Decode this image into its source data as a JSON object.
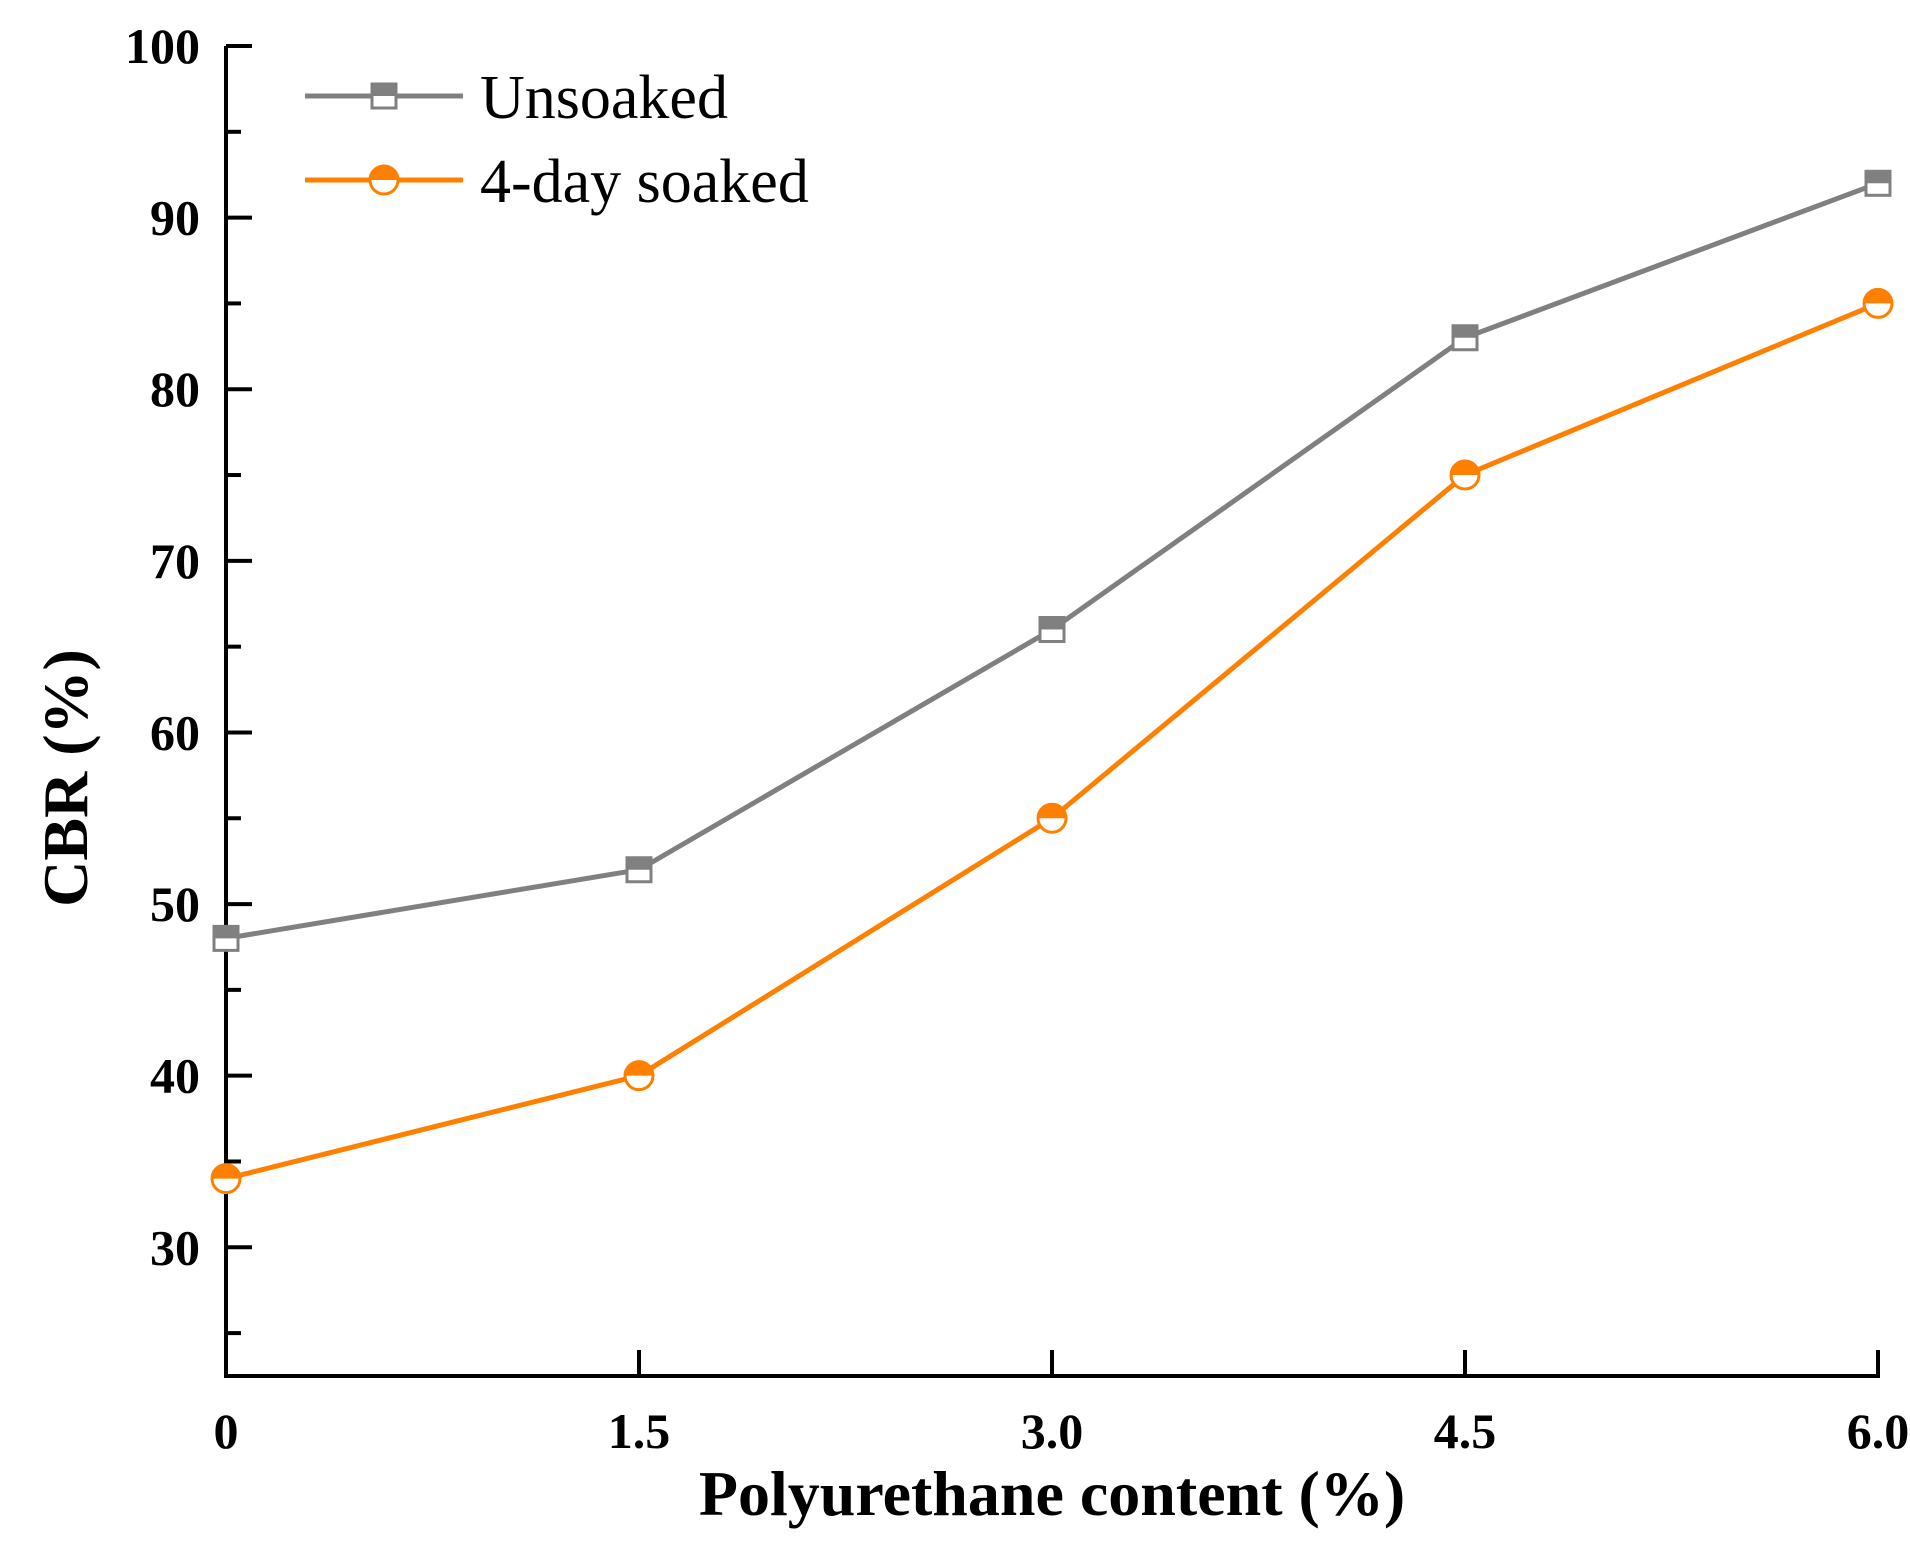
{
  "chart_data": {
    "type": "line",
    "title": "",
    "xlabel": "Polyurethane content (%)",
    "ylabel": "CBR (%)",
    "x": [
      0,
      1.5,
      3.0,
      4.5,
      6.0
    ],
    "x_tick_labels": [
      "0",
      "1.5",
      "3.0",
      "4.5",
      "6.0"
    ],
    "xlim": [
      0,
      6.0
    ],
    "y_ticks": [
      30,
      40,
      50,
      60,
      70,
      80,
      90,
      100
    ],
    "y_tick_labels": [
      "30",
      "40",
      "50",
      "60",
      "70",
      "80",
      "90",
      "100"
    ],
    "ylim": [
      22.5,
      100
    ],
    "grid": false,
    "legend_position": "top-left",
    "series": [
      {
        "name": "Unsoaked",
        "marker": "square-half-filled",
        "color": "#808080",
        "values": [
          48,
          52,
          66,
          83,
          92
        ]
      },
      {
        "name": "4-day soaked",
        "marker": "circle-half-filled",
        "color": "#ff8000",
        "values": [
          34,
          40,
          55,
          75,
          85
        ]
      }
    ]
  }
}
